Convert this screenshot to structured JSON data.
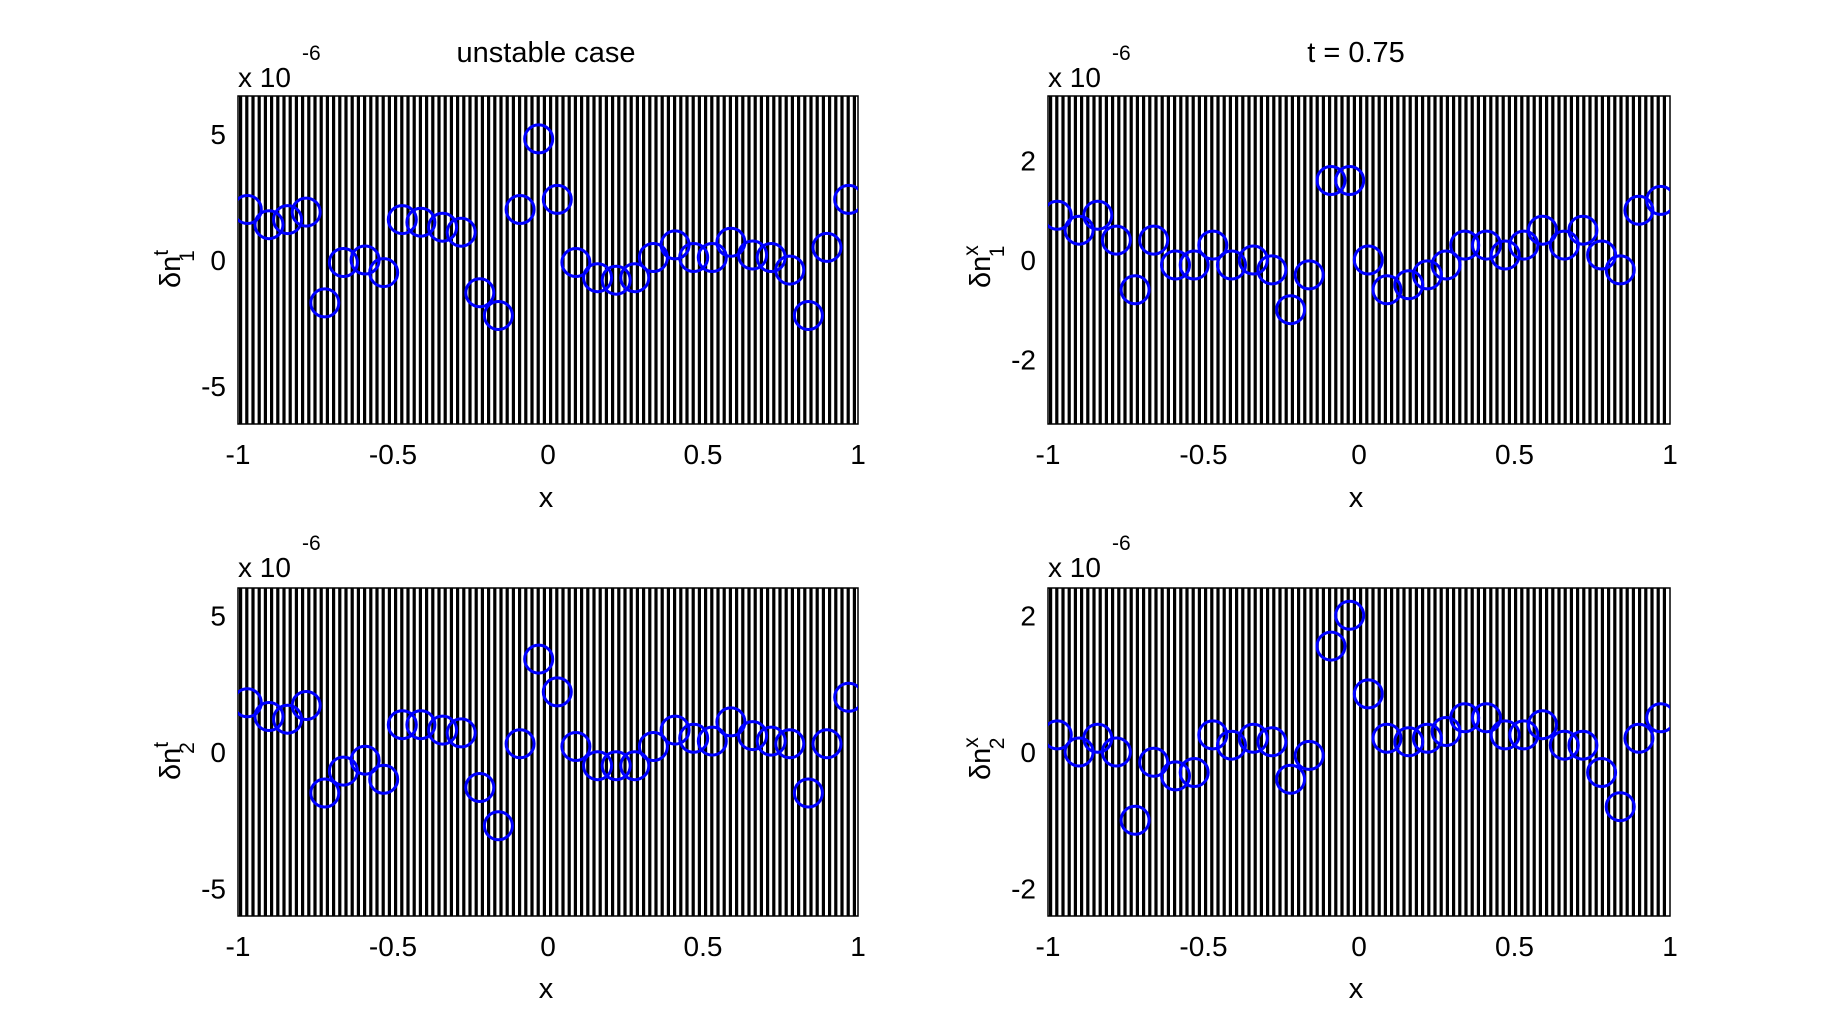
{
  "figure": {
    "background": "#ffffff",
    "stripe_color": "#000000",
    "marker_color": "#0000ff"
  },
  "chart_data": [
    {
      "type": "scatter",
      "title": "unstable case",
      "xlabel": "x",
      "ylabel": {
        "base": "δn",
        "superscript": "t",
        "subscript": "1"
      },
      "y_scale_label": "x 10",
      "y_scale_exponent": "-6",
      "xlim": [
        -1,
        1
      ],
      "ylim": [
        -6.5,
        6.5
      ],
      "xticks": [
        -1,
        -0.5,
        0,
        0.5,
        1
      ],
      "xtick_labels": [
        "-1",
        "-0.5",
        "0",
        "0.5",
        "1"
      ],
      "yticks": [
        -5,
        0,
        5
      ],
      "ytick_labels": [
        "-5",
        "0",
        "5"
      ],
      "background": "vertical black stripes",
      "marker": "open circle",
      "series": [
        {
          "x": [
            -0.97,
            -0.9,
            -0.84,
            -0.78,
            -0.72,
            -0.66,
            -0.59,
            -0.53,
            -0.47,
            -0.41,
            -0.34,
            -0.28,
            -0.22,
            -0.16,
            -0.09,
            -0.03,
            0.03,
            0.09,
            0.16,
            0.22,
            0.28,
            0.34,
            0.41,
            0.47,
            0.53,
            0.59,
            0.66,
            0.72,
            0.78,
            0.84,
            0.9,
            0.97
          ],
          "y": [
            2.0,
            1.4,
            1.6,
            1.9,
            -1.7,
            -0.1,
            0.0,
            -0.5,
            1.6,
            1.5,
            1.3,
            1.1,
            -1.3,
            -2.2,
            2.0,
            4.8,
            2.4,
            -0.1,
            -0.7,
            -0.8,
            -0.7,
            0.1,
            0.6,
            0.1,
            0.1,
            0.7,
            0.2,
            0.1,
            -0.4,
            -2.2,
            0.5,
            2.4
          ]
        }
      ]
    },
    {
      "type": "scatter",
      "title": "t = 0.75",
      "xlabel": "x",
      "ylabel": {
        "base": "δn",
        "superscript": "x",
        "subscript": "1"
      },
      "y_scale_label": "x 10",
      "y_scale_exponent": "-6",
      "xlim": [
        -1,
        1
      ],
      "ylim": [
        -3.3,
        3.3
      ],
      "xticks": [
        -1,
        -0.5,
        0,
        0.5,
        1
      ],
      "xtick_labels": [
        "-1",
        "-0.5",
        "0",
        "0.5",
        "1"
      ],
      "yticks": [
        -2,
        0,
        2
      ],
      "ytick_labels": [
        "-2",
        "0",
        "2"
      ],
      "background": "vertical black stripes",
      "marker": "open circle",
      "series": [
        {
          "x": [
            -0.97,
            -0.9,
            -0.84,
            -0.78,
            -0.72,
            -0.66,
            -0.59,
            -0.53,
            -0.47,
            -0.41,
            -0.34,
            -0.28,
            -0.22,
            -0.16,
            -0.09,
            -0.03,
            0.03,
            0.09,
            0.16,
            0.22,
            0.28,
            0.34,
            0.41,
            0.47,
            0.53,
            0.59,
            0.66,
            0.72,
            0.78,
            0.84,
            0.9,
            0.97
          ],
          "y": [
            0.9,
            0.6,
            0.9,
            0.4,
            -0.6,
            0.4,
            -0.1,
            -0.1,
            0.3,
            -0.1,
            0.0,
            -0.2,
            -1.0,
            -0.3,
            1.6,
            1.6,
            0.0,
            -0.6,
            -0.5,
            -0.3,
            -0.1,
            0.3,
            0.3,
            0.1,
            0.3,
            0.6,
            0.3,
            0.6,
            0.1,
            -0.2,
            1.0,
            1.2
          ]
        }
      ]
    },
    {
      "type": "scatter",
      "title": "",
      "xlabel": "x",
      "ylabel": {
        "base": "δn",
        "superscript": "t",
        "subscript": "2"
      },
      "y_scale_label": "x 10",
      "y_scale_exponent": "-6",
      "xlim": [
        -1,
        1
      ],
      "ylim": [
        -6,
        6
      ],
      "xticks": [
        -1,
        -0.5,
        0,
        0.5,
        1
      ],
      "xtick_labels": [
        "-1",
        "-0.5",
        "0",
        "0.5",
        "1"
      ],
      "yticks": [
        -5,
        0,
        5
      ],
      "ytick_labels": [
        "-5",
        "0",
        "5"
      ],
      "background": "vertical black stripes",
      "marker": "open circle",
      "series": [
        {
          "x": [
            -0.97,
            -0.9,
            -0.84,
            -0.78,
            -0.72,
            -0.66,
            -0.59,
            -0.53,
            -0.47,
            -0.41,
            -0.34,
            -0.28,
            -0.22,
            -0.16,
            -0.09,
            -0.03,
            0.03,
            0.09,
            0.16,
            0.22,
            0.28,
            0.34,
            0.41,
            0.47,
            0.53,
            0.59,
            0.66,
            0.72,
            0.78,
            0.84,
            0.9,
            0.97
          ],
          "y": [
            1.8,
            1.3,
            1.2,
            1.7,
            -1.5,
            -0.7,
            -0.3,
            -1.0,
            1.0,
            1.0,
            0.8,
            0.7,
            -1.3,
            -2.7,
            0.3,
            3.4,
            2.2,
            0.2,
            -0.5,
            -0.5,
            -0.5,
            0.2,
            0.8,
            0.5,
            0.4,
            1.1,
            0.6,
            0.4,
            0.3,
            -1.5,
            0.3,
            2.0
          ]
        }
      ]
    },
    {
      "type": "scatter",
      "title": "",
      "xlabel": "x",
      "ylabel": {
        "base": "δn",
        "superscript": "x",
        "subscript": "2"
      },
      "y_scale_label": "x 10",
      "y_scale_exponent": "-6",
      "xlim": [
        -1,
        1
      ],
      "ylim": [
        -2.4,
        2.4
      ],
      "xticks": [
        -1,
        -0.5,
        0,
        0.5,
        1
      ],
      "xtick_labels": [
        "-1",
        "-0.5",
        "0",
        "0.5",
        "1"
      ],
      "yticks": [
        -2,
        0,
        2
      ],
      "ytick_labels": [
        "-2",
        "0",
        "2"
      ],
      "background": "vertical black stripes",
      "marker": "open circle",
      "series": [
        {
          "x": [
            -0.97,
            -0.9,
            -0.84,
            -0.78,
            -0.72,
            -0.66,
            -0.59,
            -0.53,
            -0.47,
            -0.41,
            -0.34,
            -0.28,
            -0.22,
            -0.16,
            -0.09,
            -0.03,
            0.03,
            0.09,
            0.16,
            0.22,
            0.28,
            0.34,
            0.41,
            0.47,
            0.53,
            0.59,
            0.66,
            0.72,
            0.78,
            0.84,
            0.9,
            0.97
          ],
          "y": [
            0.25,
            0.0,
            0.2,
            0.0,
            -1.0,
            -0.15,
            -0.35,
            -0.3,
            0.25,
            0.1,
            0.2,
            0.15,
            -0.4,
            -0.05,
            1.55,
            2.0,
            0.85,
            0.2,
            0.15,
            0.2,
            0.3,
            0.5,
            0.5,
            0.25,
            0.25,
            0.4,
            0.1,
            0.1,
            -0.3,
            -0.8,
            0.2,
            0.5
          ]
        }
      ]
    }
  ]
}
